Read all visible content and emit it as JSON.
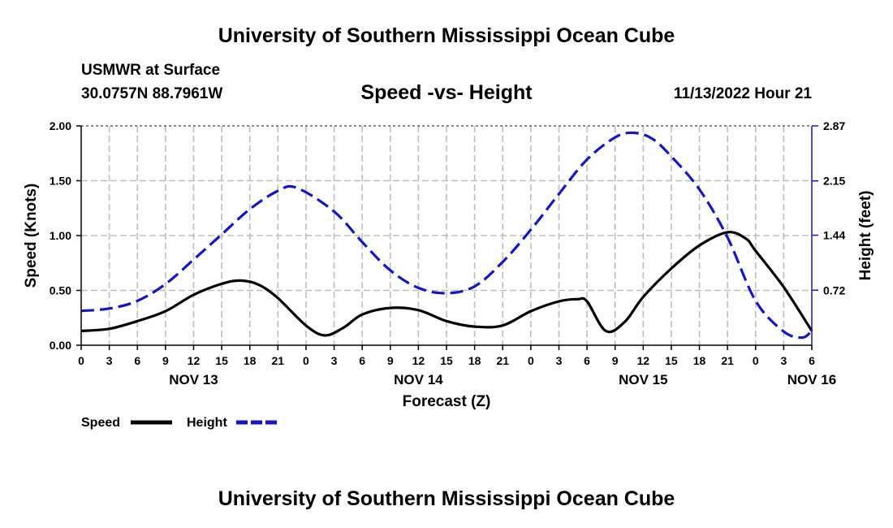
{
  "header": {
    "title": "University of Southern Mississippi Ocean Cube",
    "station": "USMWR at Surface",
    "coordinates": "30.0757N  88.7961W",
    "subtitle": "Speed -vs- Height",
    "datetime": "11/13/2022 Hour 21"
  },
  "footer": {
    "title": "University of Southern Mississippi Ocean Cube"
  },
  "legend": {
    "speed_label": "Speed",
    "height_label": "Height"
  },
  "chart_data": {
    "type": "line",
    "title": "Speed -vs- Height",
    "xlabel": "Forecast (Z)",
    "ylabel": "Speed (Knots)",
    "ylabel_right": "Height (feet)",
    "x_unit": "hours since 00Z NOV 13",
    "xlim": [
      0,
      78
    ],
    "ylim": [
      0,
      2.0
    ],
    "ylim_right": [
      0,
      2.87
    ],
    "grid": true,
    "x_tick_values": [
      0,
      3,
      6,
      9,
      12,
      15,
      18,
      21,
      24,
      27,
      30,
      33,
      36,
      39,
      42,
      45,
      48,
      51,
      54,
      57,
      60,
      63,
      66,
      69,
      72,
      75,
      78
    ],
    "x_tick_labels": [
      "0",
      "3",
      "6",
      "9",
      "12",
      "15",
      "18",
      "21",
      "0",
      "3",
      "6",
      "9",
      "12",
      "15",
      "18",
      "21",
      "0",
      "3",
      "6",
      "9",
      "12",
      "15",
      "18",
      "21",
      "0",
      "3",
      "6"
    ],
    "date_labels": [
      {
        "x": 12,
        "label": "NOV 13"
      },
      {
        "x": 36,
        "label": "NOV 14"
      },
      {
        "x": 60,
        "label": "NOV 15"
      },
      {
        "x": 78,
        "label": "NOV 16"
      }
    ],
    "y_ticks": [
      "0.00",
      "0.50",
      "1.00",
      "1.50",
      "2.00"
    ],
    "y_ticks_right": [
      "0.72",
      "1.44",
      "2.15",
      "2.87"
    ],
    "series": [
      {
        "name": "Speed",
        "axis": "left",
        "color": "#000000",
        "style": "solid",
        "x": [
          0,
          3,
          6,
          9,
          12,
          15,
          17,
          19,
          21,
          24,
          26,
          28,
          30,
          33,
          36,
          39,
          42,
          45,
          48,
          51,
          53,
          54,
          56,
          58,
          60,
          63,
          66,
          69,
          71,
          72,
          75,
          78
        ],
        "y": [
          0.13,
          0.15,
          0.22,
          0.31,
          0.46,
          0.56,
          0.59,
          0.55,
          0.43,
          0.18,
          0.09,
          0.16,
          0.28,
          0.34,
          0.32,
          0.22,
          0.17,
          0.18,
          0.31,
          0.4,
          0.42,
          0.4,
          0.13,
          0.21,
          0.44,
          0.7,
          0.91,
          1.03,
          0.97,
          0.86,
          0.53,
          0.13
        ]
      },
      {
        "name": "Height",
        "axis": "right",
        "color": "#1414c8",
        "style": "dashed",
        "x": [
          0,
          3,
          6,
          9,
          12,
          15,
          18,
          21,
          23,
          27,
          30,
          33,
          36,
          39,
          42,
          45,
          48,
          51,
          54,
          57,
          59,
          61,
          63,
          66,
          69,
          72,
          75,
          77,
          78
        ],
        "y": [
          0.45,
          0.48,
          0.58,
          0.8,
          1.12,
          1.45,
          1.78,
          2.02,
          2.06,
          1.75,
          1.35,
          0.98,
          0.75,
          0.68,
          0.77,
          1.09,
          1.51,
          1.98,
          2.43,
          2.72,
          2.78,
          2.7,
          2.47,
          2.04,
          1.41,
          0.58,
          0.18,
          0.1,
          0.19
        ]
      }
    ]
  }
}
